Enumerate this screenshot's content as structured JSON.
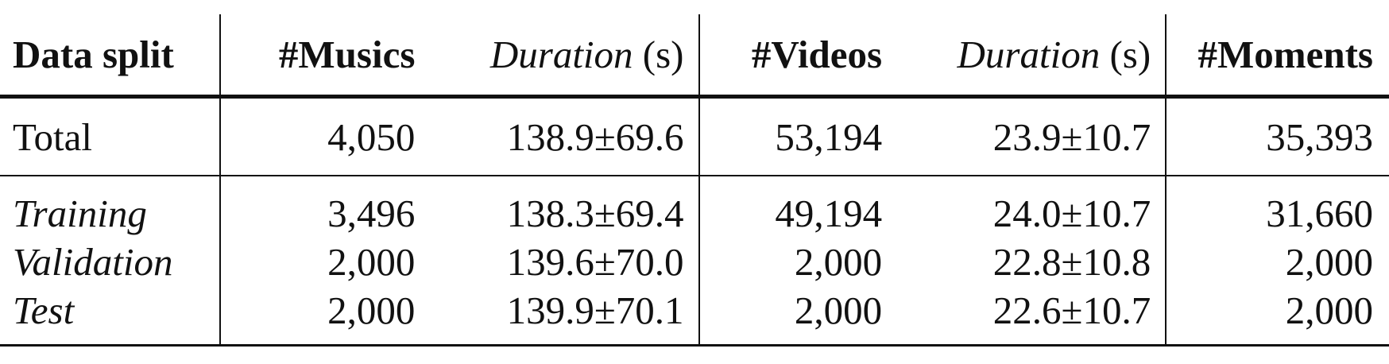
{
  "header": {
    "data_split": "Data split",
    "musics": "#Musics",
    "music_duration_word": "Duration",
    "music_duration_unit": " (s)",
    "videos": "#Videos",
    "video_duration_word": "Duration",
    "video_duration_unit": " (s)",
    "moments": "#Moments"
  },
  "total": {
    "label": "Total",
    "musics": "4,050",
    "music_duration": "138.9±69.6",
    "videos": "53,194",
    "video_duration": "23.9±10.7",
    "moments": "35,393"
  },
  "splits": [
    {
      "label": "Training",
      "musics": "3,496",
      "music_duration": "138.3±69.4",
      "videos": "49,194",
      "video_duration": "24.0±10.7",
      "moments": "31,660"
    },
    {
      "label": "Validation",
      "musics": "2,000",
      "music_duration": "139.6±70.0",
      "videos": "2,000",
      "video_duration": "22.8±10.8",
      "moments": "2,000"
    },
    {
      "label": "Test",
      "musics": "2,000",
      "music_duration": "139.9±70.1",
      "videos": "2,000",
      "video_duration": "22.6±10.7",
      "moments": "2,000"
    }
  ]
}
